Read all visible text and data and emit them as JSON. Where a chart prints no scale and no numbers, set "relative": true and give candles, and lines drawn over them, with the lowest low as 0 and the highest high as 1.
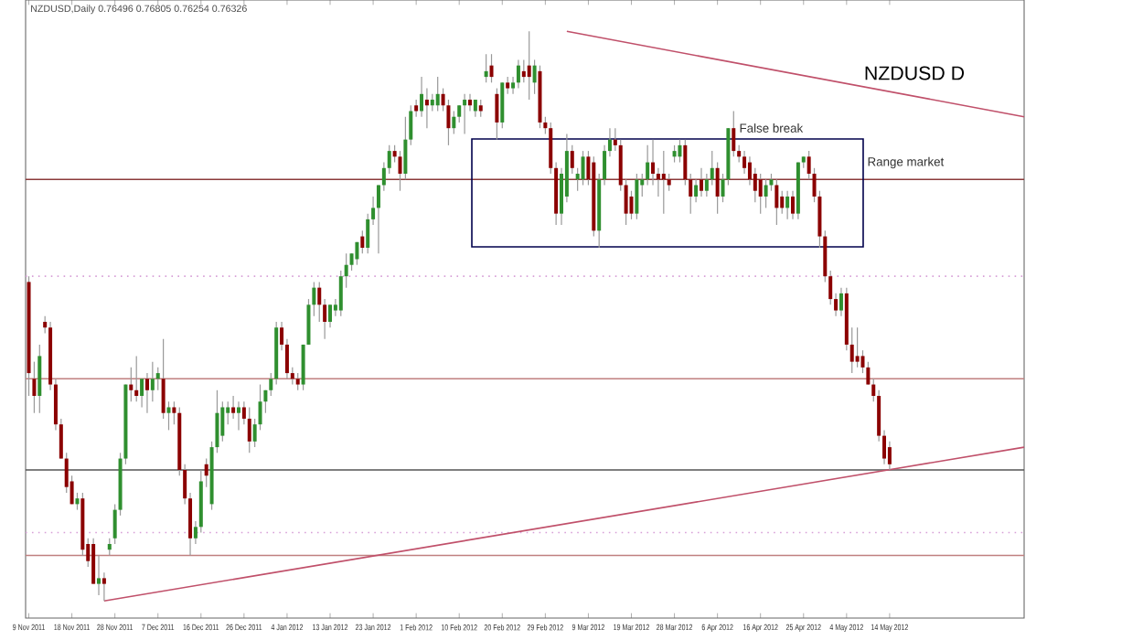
{
  "chart_data": {
    "type": "candlestick",
    "title": "NZDUSD D",
    "subtitle": "NZDUSD,Daily  0.76496 0.76805 0.76254 0.76326",
    "annotations": [
      "False break",
      "Range market"
    ],
    "relative": true,
    "colors": [
      "#8b0000",
      "#8b0000",
      "#2f8f2f",
      "#8b0000",
      "#8b0000",
      "#8b0000",
      "#8b0000",
      "#8b0000",
      "#8b0000",
      "#2f8f2f",
      "#8b0000",
      "#8b0000",
      "#8b0000",
      "#2f8f2f",
      "#8b0000",
      "#2f8f2f",
      "#2f8f2f",
      "#2f8f2f",
      "#2f8f2f",
      "#8b0000",
      "#8b0000",
      "#2f8f2f",
      "#8b0000",
      "#2f8f2f",
      "#2f8f2f",
      "#8b0000",
      "#2f8f2f",
      "#8b0000",
      "#8b0000",
      "#8b0000",
      "#8b0000",
      "#2f8f2f",
      "#2f8f2f",
      "#8b0000",
      "#2f8f2f",
      "#2f8f2f",
      "#2f8f2f",
      "#2f8f2f",
      "#8b0000",
      "#2f8f2f",
      "#8b0000",
      "#8b0000",
      "#2f8f2f",
      "#2f8f2f",
      "#2f8f2f",
      "#2f8f2f",
      "#2f8f2f",
      "#8b0000",
      "#8b0000",
      "#8b0000",
      "#8b0000",
      "#2f8f2f",
      "#2f8f2f",
      "#2f8f2f",
      "#8b0000",
      "#8b0000",
      "#2f8f2f",
      "#2f8f2f",
      "#2f8f2f",
      "#2f8f2f",
      "#2f8f2f",
      "#2f8f2f",
      "#8b0000",
      "#2f8f2f",
      "#2f8f2f",
      "#2f8f2f",
      "#2f8f2f",
      "#2f8f2f",
      "#8b0000",
      "#8b0000",
      "#2f8f2f",
      "#2f8f2f",
      "#8b0000",
      "#2f8f2f",
      "#8b0000",
      "#2f8f2f",
      "#2f8f2f",
      "#8b0000",
      "#8b0000",
      "#2f8f2f",
      "#2f8f2f",
      "#2f8f2f",
      "#8b0000",
      "#2f8f2f",
      "#8b0000",
      "#2f8f2f",
      "#8b0000",
      "#8b0000",
      "#2f8f2f",
      "#8b0000",
      "#2f8f2f",
      "#2f8f2f",
      "#8b0000",
      "#8b0000",
      "#2f8f2f",
      "#8b0000",
      "#8b0000",
      "#8b0000",
      "#8b0000",
      "#2f8f2f",
      "#2f8f2f",
      "#8b0000",
      "#2f8f2f",
      "#2f8f2f",
      "#8b0000",
      "#8b0000",
      "#2f8f2f",
      "#2f8f2f",
      "#2f8f2f",
      "#8b0000",
      "#8b0000",
      "#8b0000",
      "#8b0000",
      "#2f8f2f",
      "#2f8f2f",
      "#2f8f2f",
      "#8b0000",
      "#8b0000",
      "#8b0000",
      "#8b0000",
      "#2f8f2f",
      "#2f8f2f",
      "#8b0000",
      "#8b0000",
      "#2f8f2f",
      "#8b0000",
      "#2f8f2f",
      "#2f8f2f",
      "#8b0000",
      "#2f8f2f",
      "#2f8f2f",
      "#8b0000",
      "#8b0000",
      "#8b0000",
      "#8b0000",
      "#8b0000",
      "#8b0000",
      "#2f8f2f",
      "#2f8f2f",
      "#8b0000",
      "#8b0000",
      "#2f8f2f",
      "#8b0000",
      "#2f8f2f",
      "#2f8f2f",
      "#8b0000",
      "#8b0000",
      "#8b0000",
      "#8b0000",
      "#8b0000",
      "#8b0000",
      "#2f8f2f",
      "#8b0000",
      "#8b0000",
      "#8b0000",
      "#8b0000",
      "#8b0000",
      "#8b0000",
      "#8b0000",
      "#8b0000",
      "#8b0000",
      null,
      null,
      null,
      null,
      null,
      null,
      null,
      null,
      null,
      null,
      null,
      null,
      null,
      null,
      null,
      null,
      null,
      null,
      null,
      null,
      null,
      null,
      null,
      null,
      null
    ],
    "categories": [
      "9 Nov 2011",
      null,
      null,
      null,
      null,
      null,
      null,
      null,
      "18 Nov 2011",
      null,
      null,
      null,
      null,
      null,
      null,
      null,
      "28 Nov 2011",
      null,
      null,
      null,
      null,
      null,
      null,
      null,
      "7 Dec 2011",
      null,
      null,
      null,
      null,
      null,
      null,
      null,
      "16 Dec 2011",
      null,
      null,
      null,
      null,
      null,
      null,
      null,
      "26 Dec 2011",
      null,
      null,
      null,
      null,
      null,
      null,
      null,
      "4 Jan 2012",
      null,
      null,
      null,
      null,
      null,
      null,
      null,
      "13 Jan 2012",
      null,
      null,
      null,
      null,
      null,
      null,
      null,
      "23 Jan 2012",
      null,
      null,
      null,
      null,
      null,
      null,
      null,
      "1 Feb 2012",
      null,
      null,
      null,
      null,
      null,
      null,
      null,
      "10 Feb 2012",
      null,
      null,
      null,
      null,
      null,
      null,
      null,
      "20 Feb 2012",
      null,
      null,
      null,
      null,
      null,
      null,
      null,
      "29 Feb 2012",
      null,
      null,
      null,
      null,
      null,
      null,
      null,
      "9 Mar 2012",
      null,
      null,
      null,
      null,
      null,
      null,
      null,
      "19 Mar 2012",
      null,
      null,
      null,
      null,
      null,
      null,
      null,
      "28 Mar 2012",
      null,
      null,
      null,
      null,
      null,
      null,
      null,
      "6 Apr 2012",
      null,
      null,
      null,
      null,
      null,
      null,
      null,
      "16 Apr 2012",
      null,
      null,
      null,
      null,
      null,
      null,
      null,
      "25 Apr 2012",
      null,
      null,
      null,
      null,
      null,
      null,
      null,
      "4 May 2012",
      null,
      null,
      null,
      null,
      null,
      null,
      null,
      "14 May 2012",
      null,
      null,
      null,
      null,
      null,
      null,
      null,
      null,
      null,
      null,
      null,
      null,
      null,
      null,
      null,
      null,
      null,
      null,
      null,
      null,
      null,
      null,
      null,
      null,
      null
    ],
    "ohlc": [
      [
        0.56,
        0.57,
        0.36,
        0.4
      ],
      [
        0.39,
        0.42,
        0.33,
        0.36
      ],
      [
        0.36,
        0.45,
        0.33,
        0.43
      ],
      [
        0.49,
        0.5,
        0.47,
        0.48
      ],
      [
        0.48,
        0.49,
        0.37,
        0.38
      ],
      [
        0.38,
        0.39,
        0.3,
        0.31
      ],
      [
        0.31,
        0.32,
        0.25,
        0.25
      ],
      [
        0.25,
        0.26,
        0.19,
        0.2
      ],
      [
        0.21,
        0.22,
        0.17,
        0.17
      ],
      [
        0.17,
        0.19,
        0.16,
        0.18
      ],
      [
        0.18,
        0.19,
        0.08,
        0.09
      ],
      [
        0.1,
        0.11,
        0.06,
        0.07
      ],
      [
        0.1,
        0.11,
        0.03,
        0.03
      ],
      [
        0.03,
        0.08,
        0.01,
        0.04
      ],
      [
        0.04,
        0.05,
        0.0,
        0.03
      ],
      [
        0.09,
        0.11,
        0.08,
        0.1
      ],
      [
        0.11,
        0.17,
        0.1,
        0.16
      ],
      [
        0.16,
        0.26,
        0.15,
        0.25
      ],
      [
        0.25,
        0.38,
        0.24,
        0.38
      ],
      [
        0.38,
        0.41,
        0.35,
        0.37
      ],
      [
        0.37,
        0.43,
        0.35,
        0.36
      ],
      [
        0.36,
        0.39,
        0.34,
        0.39
      ],
      [
        0.39,
        0.4,
        0.33,
        0.37
      ],
      [
        0.37,
        0.42,
        0.35,
        0.39
      ],
      [
        0.39,
        0.41,
        0.37,
        0.4
      ],
      [
        0.39,
        0.46,
        0.32,
        0.33
      ],
      [
        0.33,
        0.35,
        0.3,
        0.34
      ],
      [
        0.34,
        0.35,
        0.31,
        0.33
      ],
      [
        0.33,
        0.34,
        0.22,
        0.23
      ],
      [
        0.23,
        0.24,
        0.17,
        0.18
      ],
      [
        0.18,
        0.19,
        0.08,
        0.11
      ],
      [
        0.11,
        0.14,
        0.1,
        0.13
      ],
      [
        0.13,
        0.23,
        0.12,
        0.21
      ],
      [
        0.24,
        0.25,
        0.2,
        0.22
      ],
      [
        0.17,
        0.28,
        0.16,
        0.27
      ],
      [
        0.27,
        0.37,
        0.26,
        0.33
      ],
      [
        0.29,
        0.35,
        0.28,
        0.34
      ],
      [
        0.33,
        0.35,
        0.31,
        0.34
      ],
      [
        0.34,
        0.36,
        0.32,
        0.33
      ],
      [
        0.33,
        0.35,
        0.3,
        0.34
      ],
      [
        0.34,
        0.35,
        0.31,
        0.32
      ],
      [
        0.32,
        0.34,
        0.26,
        0.28
      ],
      [
        0.28,
        0.32,
        0.27,
        0.31
      ],
      [
        0.31,
        0.38,
        0.3,
        0.35
      ],
      [
        0.35,
        0.37,
        0.33,
        0.37
      ],
      [
        0.37,
        0.4,
        0.36,
        0.39
      ],
      [
        0.39,
        0.49,
        0.38,
        0.48
      ],
      [
        0.48,
        0.49,
        0.44,
        0.45
      ],
      [
        0.45,
        0.46,
        0.39,
        0.4
      ],
      [
        0.4,
        0.41,
        0.38,
        0.39
      ],
      [
        0.39,
        0.4,
        0.37,
        0.38
      ],
      [
        0.38,
        0.45,
        0.37,
        0.45
      ],
      [
        0.45,
        0.53,
        0.45,
        0.52
      ],
      [
        0.52,
        0.56,
        0.5,
        0.55
      ],
      [
        0.55,
        0.56,
        0.49,
        0.52
      ],
      [
        0.52,
        0.53,
        0.46,
        0.49
      ],
      [
        0.49,
        0.52,
        0.48,
        0.52
      ],
      [
        0.51,
        0.53,
        0.5,
        0.52
      ],
      [
        0.51,
        0.58,
        0.5,
        0.57
      ],
      [
        0.57,
        0.61,
        0.55,
        0.59
      ],
      [
        0.59,
        0.61,
        0.58,
        0.61
      ],
      [
        0.6,
        0.63,
        0.59,
        0.63
      ],
      [
        0.64,
        0.65,
        0.61,
        0.62
      ],
      [
        0.62,
        0.68,
        0.61,
        0.67
      ],
      [
        0.67,
        0.71,
        0.66,
        0.69
      ],
      [
        0.69,
        0.73,
        0.61,
        0.73
      ],
      [
        0.73,
        0.77,
        0.72,
        0.76
      ],
      [
        0.76,
        0.8,
        0.75,
        0.79
      ],
      [
        0.79,
        0.8,
        0.77,
        0.78
      ],
      [
        0.78,
        0.79,
        0.72,
        0.75
      ],
      [
        0.75,
        0.85,
        0.74,
        0.81
      ],
      [
        0.81,
        0.87,
        0.8,
        0.86
      ],
      [
        0.87,
        0.88,
        0.85,
        0.86
      ],
      [
        0.86,
        0.92,
        0.85,
        0.89
      ],
      [
        0.88,
        0.9,
        0.83,
        0.87
      ],
      [
        0.87,
        0.89,
        0.86,
        0.88
      ],
      [
        0.87,
        0.92,
        0.86,
        0.89
      ],
      [
        0.89,
        0.9,
        0.86,
        0.87
      ],
      [
        0.87,
        0.88,
        0.8,
        0.83
      ],
      [
        0.83,
        0.86,
        0.82,
        0.85
      ],
      [
        0.85,
        0.87,
        0.84,
        0.87
      ],
      [
        0.87,
        0.89,
        0.82,
        0.88
      ],
      [
        0.88,
        0.89,
        0.86,
        0.87
      ],
      [
        0.86,
        0.88,
        0.85,
        0.88
      ],
      [
        0.87,
        0.88,
        0.85,
        0.86
      ],
      [
        0.92,
        0.96,
        0.91,
        0.93
      ],
      [
        0.94,
        0.96,
        0.91,
        0.92
      ],
      [
        0.89,
        0.9,
        0.81,
        0.84
      ],
      [
        0.84,
        0.91,
        0.83,
        0.91
      ],
      [
        0.91,
        0.92,
        0.89,
        0.9
      ],
      [
        0.9,
        0.92,
        0.89,
        0.91
      ],
      [
        0.91,
        0.95,
        0.9,
        0.94
      ],
      [
        0.93,
        0.95,
        0.91,
        0.92
      ],
      [
        0.94,
        1.0,
        0.88,
        0.92
      ],
      [
        0.91,
        0.95,
        0.89,
        0.94
      ],
      [
        0.93,
        0.94,
        0.83,
        0.84
      ],
      [
        0.84,
        0.85,
        0.82,
        0.83
      ],
      [
        0.83,
        0.84,
        0.75,
        0.76
      ],
      [
        0.76,
        0.77,
        0.66,
        0.68
      ],
      [
        0.68,
        0.76,
        0.66,
        0.75
      ],
      [
        0.71,
        0.82,
        0.7,
        0.79
      ],
      [
        0.79,
        0.8,
        0.75,
        0.76
      ],
      [
        0.74,
        0.76,
        0.72,
        0.75
      ],
      [
        0.74,
        0.79,
        0.73,
        0.78
      ],
      [
        0.78,
        0.79,
        0.73,
        0.74
      ],
      [
        0.77,
        0.78,
        0.64,
        0.65
      ],
      [
        0.65,
        0.75,
        0.62,
        0.74
      ],
      [
        0.74,
        0.8,
        0.73,
        0.79
      ],
      [
        0.79,
        0.83,
        0.78,
        0.81
      ],
      [
        0.81,
        0.83,
        0.79,
        0.8
      ],
      [
        0.8,
        0.81,
        0.72,
        0.73
      ],
      [
        0.73,
        0.74,
        0.66,
        0.68
      ],
      [
        0.71,
        0.72,
        0.67,
        0.68
      ],
      [
        0.68,
        0.75,
        0.67,
        0.74
      ],
      [
        0.73,
        0.75,
        0.71,
        0.74
      ],
      [
        0.74,
        0.8,
        0.73,
        0.77
      ],
      [
        0.77,
        0.81,
        0.73,
        0.75
      ],
      [
        0.75,
        0.76,
        0.71,
        0.74
      ],
      [
        0.75,
        0.79,
        0.68,
        0.74
      ],
      [
        0.74,
        0.75,
        0.72,
        0.73
      ],
      [
        0.78,
        0.8,
        0.77,
        0.79
      ],
      [
        0.78,
        0.81,
        0.77,
        0.8
      ],
      [
        0.8,
        0.81,
        0.73,
        0.74
      ],
      [
        0.74,
        0.75,
        0.68,
        0.71
      ],
      [
        0.71,
        0.74,
        0.7,
        0.73
      ],
      [
        0.74,
        0.76,
        0.71,
        0.72
      ],
      [
        0.72,
        0.75,
        0.71,
        0.74
      ],
      [
        0.74,
        0.79,
        0.73,
        0.76
      ],
      [
        0.76,
        0.77,
        0.68,
        0.71
      ],
      [
        0.71,
        0.75,
        0.7,
        0.74
      ],
      [
        0.74,
        0.83,
        0.73,
        0.83
      ],
      [
        0.83,
        0.86,
        0.78,
        0.79
      ],
      [
        0.79,
        0.8,
        0.77,
        0.78
      ],
      [
        0.78,
        0.79,
        0.75,
        0.76
      ],
      [
        0.77,
        0.78,
        0.73,
        0.74
      ],
      [
        0.75,
        0.76,
        0.7,
        0.72
      ],
      [
        0.74,
        0.75,
        0.68,
        0.71
      ],
      [
        0.71,
        0.74,
        0.69,
        0.73
      ],
      [
        0.73,
        0.75,
        0.72,
        0.74
      ],
      [
        0.73,
        0.74,
        0.66,
        0.69
      ],
      [
        0.71,
        0.72,
        0.68,
        0.69
      ],
      [
        0.69,
        0.72,
        0.67,
        0.71
      ],
      [
        0.71,
        0.72,
        0.67,
        0.68
      ],
      [
        0.68,
        0.77,
        0.67,
        0.77
      ],
      [
        0.77,
        0.78,
        0.76,
        0.78
      ],
      [
        0.78,
        0.79,
        0.74,
        0.75
      ],
      [
        0.75,
        0.76,
        0.7,
        0.71
      ],
      [
        0.71,
        0.72,
        0.62,
        0.64
      ],
      [
        0.64,
        0.65,
        0.56,
        0.57
      ],
      [
        0.57,
        0.58,
        0.52,
        0.53
      ],
      [
        0.53,
        0.54,
        0.5,
        0.51
      ],
      [
        0.51,
        0.55,
        0.5,
        0.54
      ],
      [
        0.54,
        0.55,
        0.44,
        0.45
      ],
      [
        0.45,
        0.48,
        0.4,
        0.42
      ],
      [
        0.43,
        0.48,
        0.41,
        0.42
      ],
      [
        0.43,
        0.44,
        0.4,
        0.41
      ],
      [
        0.41,
        0.42,
        0.38,
        0.38
      ],
      [
        0.38,
        0.39,
        0.35,
        0.36
      ],
      [
        0.36,
        0.37,
        0.28,
        0.29
      ],
      [
        0.29,
        0.3,
        0.24,
        0.25
      ],
      [
        0.27,
        0.28,
        0.23,
        0.24
      ],
      null,
      null,
      null,
      null,
      null,
      null,
      null,
      null,
      null,
      null,
      null,
      null,
      null,
      null,
      null,
      null,
      null,
      null,
      null,
      null,
      null,
      null,
      null,
      null,
      null
    ],
    "series": [
      {
        "type": "line",
        "color": "#c0506a",
        "values": [
          null,
          null,
          null,
          null,
          null,
          null,
          null,
          null,
          null,
          null,
          null,
          null,
          null,
          null,
          null,
          null,
          null,
          null,
          null,
          null,
          null,
          null,
          null,
          null,
          null,
          null,
          null,
          null,
          null,
          null,
          null,
          null,
          null,
          null,
          null,
          null,
          null,
          null,
          null,
          null,
          null,
          null,
          null,
          null,
          null,
          null,
          null,
          null,
          null,
          null,
          null,
          null,
          null,
          null,
          null,
          null,
          null,
          null,
          null,
          null,
          null,
          null,
          null,
          null,
          null,
          null,
          null,
          null,
          null,
          null,
          null,
          null,
          null,
          null,
          null,
          null,
          null,
          null,
          null,
          null,
          null,
          null,
          null,
          null,
          null,
          null,
          null,
          null,
          null,
          null,
          null,
          null,
          null,
          null,
          null,
          null,
          null,
          null,
          null,
          null,
          1.0,
          null,
          null,
          null,
          null,
          null,
          null,
          null,
          null,
          null,
          null,
          null,
          null,
          null,
          null,
          null,
          null,
          null,
          null,
          null,
          null,
          null,
          null,
          null,
          null,
          null,
          null,
          null,
          null,
          null,
          null,
          null,
          null,
          null,
          null,
          null,
          null,
          null,
          null,
          null,
          null,
          null,
          null,
          null,
          null,
          null,
          null,
          null,
          null,
          null,
          null,
          null,
          null,
          null,
          null,
          null,
          null,
          null,
          null,
          null,
          null,
          null,
          null,
          null,
          null,
          null,
          null,
          null,
          null,
          null,
          null,
          null,
          null,
          null,
          null,
          null,
          null,
          null,
          null,
          null,
          null,
          null,
          null,
          null,
          null,
          0.85
        ]
      },
      {
        "type": "line",
        "color": "#c0506a",
        "values": [
          null,
          null,
          null,
          null,
          null,
          null,
          null,
          null,
          null,
          null,
          null,
          null,
          null,
          null,
          0.0,
          null,
          null,
          null,
          null,
          null,
          null,
          null,
          null,
          null,
          null,
          null,
          null,
          null,
          null,
          null,
          null,
          null,
          null,
          null,
          null,
          null,
          null,
          null,
          null,
          null,
          null,
          null,
          null,
          null,
          null,
          null,
          null,
          null,
          null,
          null,
          null,
          null,
          null,
          null,
          null,
          null,
          null,
          null,
          null,
          null,
          null,
          null,
          null,
          null,
          null,
          null,
          null,
          null,
          null,
          null,
          null,
          null,
          null,
          null,
          null,
          null,
          null,
          null,
          null,
          null,
          null,
          null,
          null,
          null,
          null,
          null,
          null,
          null,
          null,
          null,
          null,
          null,
          null,
          null,
          null,
          null,
          null,
          null,
          null,
          null,
          null,
          null,
          null,
          null,
          null,
          null,
          null,
          null,
          null,
          null,
          null,
          null,
          null,
          null,
          null,
          null,
          null,
          null,
          null,
          null,
          null,
          null,
          null,
          null,
          null,
          null,
          null,
          null,
          null,
          null,
          null,
          null,
          null,
          null,
          null,
          null,
          null,
          null,
          null,
          null,
          null,
          null,
          null,
          null,
          null,
          null,
          null,
          null,
          null,
          null,
          null,
          null,
          null,
          null,
          null,
          null,
          null,
          null,
          null,
          null,
          null,
          null,
          null,
          null,
          null,
          null,
          null,
          null,
          null,
          null,
          null,
          null,
          null,
          null,
          null,
          null,
          null,
          null,
          null,
          null,
          null,
          null,
          null,
          null,
          null,
          0.27
        ]
      }
    ],
    "line_style": "solid",
    "marker": "none",
    "ref_lines": [
      {
        "axis": "y",
        "value": 0.74,
        "color": "#8b3a3a"
      },
      {
        "axis": "y",
        "value": 0.39,
        "color": "#c08080"
      },
      {
        "axis": "y",
        "value": 0.23,
        "color": "#555555"
      },
      {
        "axis": "y",
        "value": 0.08,
        "color": "#c08080"
      },
      {
        "axis": "y",
        "value": 0.57,
        "color": "#d8a0d8",
        "line_style": "dotted"
      },
      {
        "axis": "y",
        "value": 0.12,
        "color": "#d8a0d8",
        "line_style": "dotted"
      }
    ]
  }
}
